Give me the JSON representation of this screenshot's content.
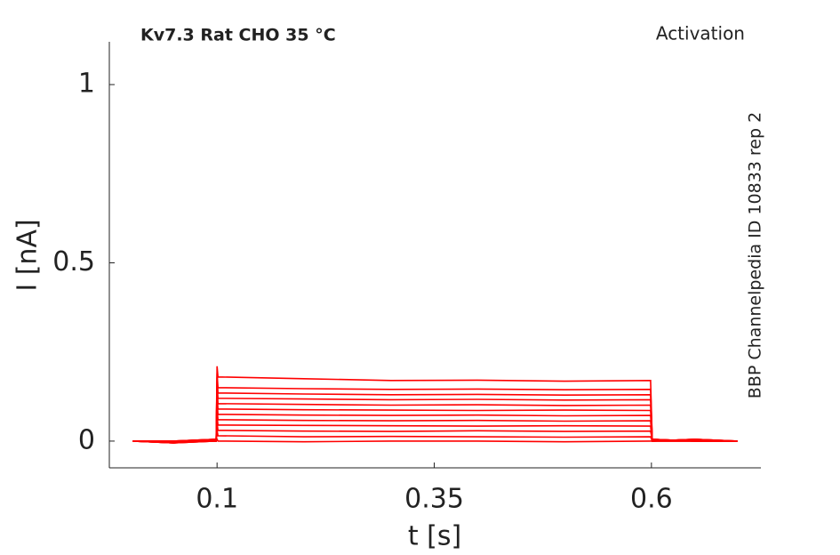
{
  "chart_data": {
    "type": "line",
    "title": "Kv7.3  Rat  CHO  35 °C",
    "subtitle": "Activation",
    "annotation": "BBP Channelpedia ID 10833 rep 2",
    "xlabel": "t [s]",
    "ylabel": "I [nA]",
    "color": "#ff0000",
    "x": [
      0.003,
      0.05,
      0.099,
      0.1,
      0.101,
      0.2,
      0.3,
      0.4,
      0.5,
      0.599,
      0.601,
      0.65,
      0.699
    ],
    "series": [
      {
        "values": [
          0,
          -0.005,
          0,
          0.005,
          0,
          -0.002,
          0,
          0,
          -0.002,
          0,
          0,
          0,
          0
        ]
      },
      {
        "values": [
          0,
          0,
          0.005,
          0.03,
          0.015,
          0.012,
          0.013,
          0.012,
          0.011,
          0.012,
          0,
          0.005,
          0
        ]
      },
      {
        "values": [
          0,
          -0.005,
          0,
          0.05,
          0.03,
          0.028,
          0.027,
          0.029,
          0.027,
          0.028,
          0.005,
          0,
          0
        ]
      },
      {
        "values": [
          0,
          0,
          0.005,
          0.07,
          0.045,
          0.044,
          0.043,
          0.042,
          0.043,
          0.042,
          0,
          0.005,
          0
        ]
      },
      {
        "values": [
          0,
          0,
          0,
          0.09,
          0.06,
          0.058,
          0.057,
          0.058,
          0.056,
          0.057,
          0.005,
          0,
          0
        ]
      },
      {
        "values": [
          0,
          -0.005,
          0.005,
          0.11,
          0.075,
          0.073,
          0.072,
          0.073,
          0.071,
          0.072,
          0,
          0,
          0
        ]
      },
      {
        "values": [
          0,
          0,
          0,
          0.13,
          0.09,
          0.088,
          0.087,
          0.086,
          0.087,
          0.086,
          0.005,
          0,
          0
        ]
      },
      {
        "values": [
          0,
          0,
          0.005,
          0.15,
          0.105,
          0.103,
          0.101,
          0.102,
          0.1,
          0.101,
          0,
          0.005,
          0
        ]
      },
      {
        "values": [
          0,
          -0.005,
          0,
          0.16,
          0.12,
          0.118,
          0.116,
          0.117,
          0.115,
          0.116,
          0.005,
          0,
          0
        ]
      },
      {
        "values": [
          0,
          0,
          0.005,
          0.18,
          0.135,
          0.132,
          0.13,
          0.131,
          0.129,
          0.13,
          0,
          0,
          0
        ]
      },
      {
        "values": [
          0,
          0,
          0,
          0.19,
          0.15,
          0.147,
          0.145,
          0.146,
          0.144,
          0.145,
          0.005,
          0,
          0
        ]
      },
      {
        "values": [
          0,
          -0.005,
          0.005,
          0.21,
          0.18,
          0.175,
          0.17,
          0.171,
          0.168,
          0.17,
          0,
          0.005,
          0
        ]
      }
    ],
    "xlim": [
      -0.024,
      0.726
    ],
    "ylim": [
      -0.075,
      1.12
    ],
    "xticks": [
      0.1,
      0.35,
      0.6
    ],
    "yticks": [
      0,
      0.5,
      1
    ],
    "grid": false
  }
}
